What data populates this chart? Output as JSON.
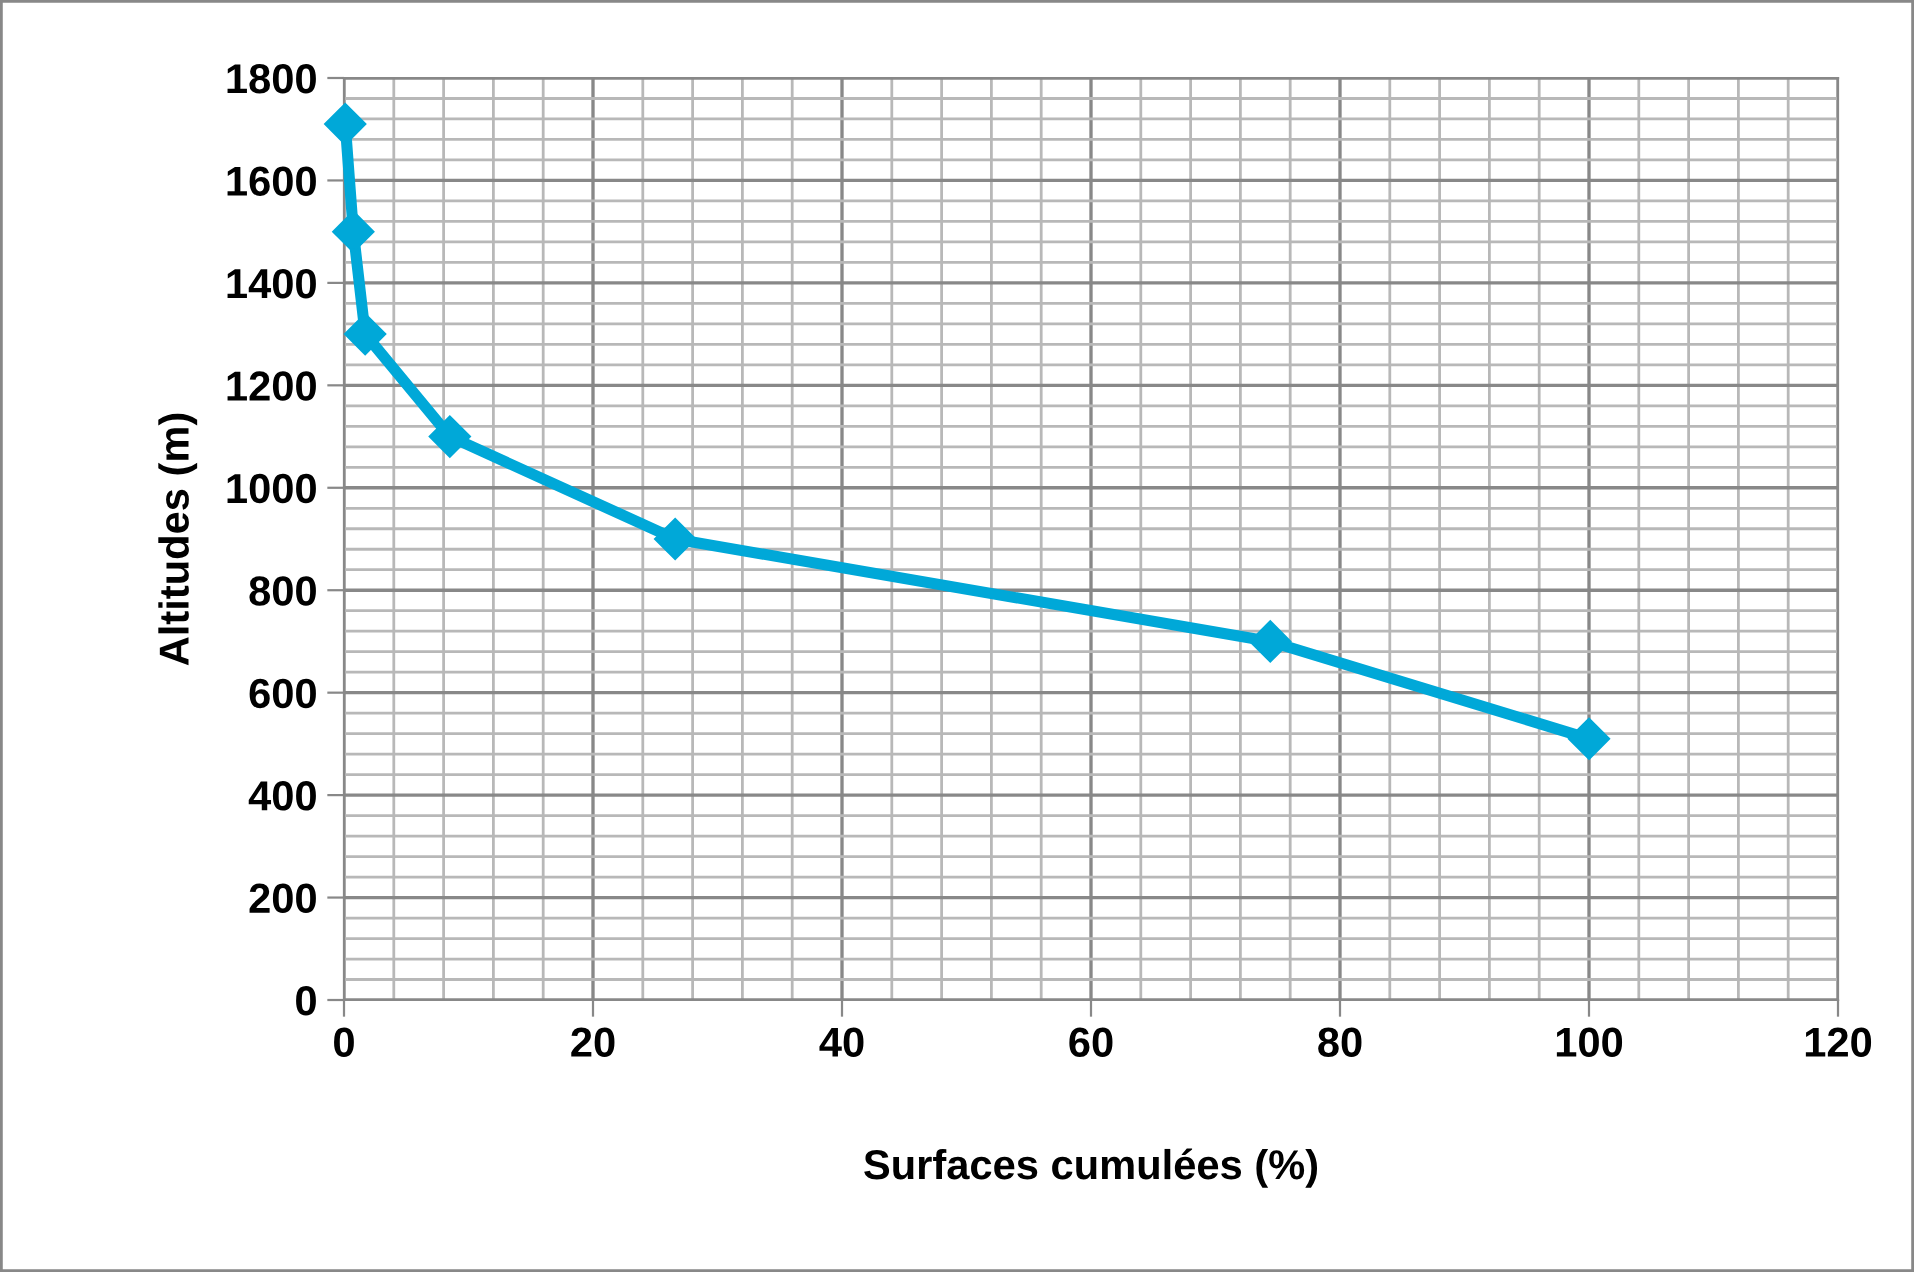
{
  "chart_data": {
    "type": "line",
    "xlabel": "Surfaces cumulées (%)",
    "ylabel": "Altitudes (m)",
    "x": [
      0.1,
      0.75,
      1.7,
      8.5,
      26.6,
      74.4,
      100
    ],
    "series": [
      {
        "color": "#00a8d8",
        "values": [
          1710,
          1500,
          1300,
          1100,
          900,
          700,
          510
        ]
      }
    ],
    "xlim": [
      0,
      120
    ],
    "xticks": [
      0,
      20,
      40,
      60,
      80,
      100,
      120
    ],
    "ylim": [
      0,
      1800
    ],
    "yticks": [
      0,
      200,
      400,
      600,
      800,
      1000,
      1200,
      1400,
      1600,
      1800
    ],
    "grid": true,
    "marker": "diamond",
    "line_style": "solid"
  }
}
